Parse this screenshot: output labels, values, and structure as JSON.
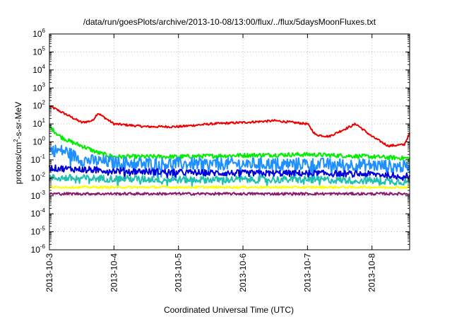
{
  "chart_data": {
    "type": "line",
    "title": "/data/run/goesPlots/archive/2013-10-08/13:00/flux/../flux/5daysMoonFluxes.txt",
    "xlabel": "Coordinated Universal Time (UTC)",
    "ylabel": {
      "prefix": "protons/cm",
      "sup": "2",
      "suffix": "-s-sr-MeV"
    },
    "yscale": "log",
    "ylim": [
      1e-06,
      1000000.0
    ],
    "yticks": [
      {
        "base": "10",
        "exp": "-6",
        "value": -6
      },
      {
        "base": "10",
        "exp": "-5",
        "value": -5
      },
      {
        "base": "10",
        "exp": "-4",
        "value": -4
      },
      {
        "base": "10",
        "exp": "-3",
        "value": -3
      },
      {
        "base": "10",
        "exp": "-2",
        "value": -2
      },
      {
        "base": "10",
        "exp": "-1",
        "value": -1
      },
      {
        "base": "10",
        "exp": "0",
        "value": 0
      },
      {
        "base": "10",
        "exp": "1",
        "value": 1
      },
      {
        "base": "10",
        "exp": "2",
        "value": 2
      },
      {
        "base": "10",
        "exp": "3",
        "value": 3
      },
      {
        "base": "10",
        "exp": "4",
        "value": 4
      },
      {
        "base": "10",
        "exp": "5",
        "value": 5
      },
      {
        "base": "10",
        "exp": "6",
        "value": 6
      }
    ],
    "xlim": [
      "2013-10-03T00:00",
      "2013-10-08T14:00"
    ],
    "xticks": [
      "2013-10-3",
      "2013-10-4",
      "2013-10-5",
      "2013-10-6",
      "2013-10-7",
      "2013-10-8"
    ],
    "grid": true,
    "series": [
      {
        "color": "#ee0000",
        "noise": 0.06,
        "x": [
          "2013-10-03T00:00",
          "2013-10-03T06:00",
          "2013-10-03T12:00",
          "2013-10-03T16:00",
          "2013-10-03T18:00",
          "2013-10-04T00:00",
          "2013-10-04T12:00",
          "2013-10-05T00:00",
          "2013-10-05T12:00",
          "2013-10-06T00:00",
          "2013-10-06T12:00",
          "2013-10-07T00:00",
          "2013-10-07T03:00",
          "2013-10-07T08:00",
          "2013-10-07T18:00",
          "2013-10-08T00:00",
          "2013-10-08T06:00",
          "2013-10-08T12:00",
          "2013-10-08T14:00"
        ],
        "y": [
          100,
          35,
          12,
          15,
          40,
          10,
          7,
          7,
          10,
          12,
          15,
          10,
          2.5,
          2,
          10,
          2,
          0.6,
          0.7,
          3
        ]
      },
      {
        "color": "#00ee00",
        "noise": 0.12,
        "x": [
          "2013-10-03T00:00",
          "2013-10-03T04:00",
          "2013-10-03T08:00",
          "2013-10-03T12:00",
          "2013-10-03T18:00",
          "2013-10-04T00:00",
          "2013-10-05T00:00",
          "2013-10-06T00:00",
          "2013-10-07T00:00",
          "2013-10-08T00:00",
          "2013-10-08T14:00"
        ],
        "y": [
          7,
          2,
          1,
          0.6,
          0.25,
          0.15,
          0.15,
          0.18,
          0.2,
          0.15,
          0.12
        ]
      },
      {
        "color": "#1e90ff",
        "noise": 0.35,
        "x": [
          "2013-10-03T00:00",
          "2013-10-03T06:00",
          "2013-10-03T12:00",
          "2013-10-04T00:00",
          "2013-10-05T00:00",
          "2013-10-06T00:00",
          "2013-10-07T00:00",
          "2013-10-08T00:00",
          "2013-10-08T14:00"
        ],
        "y": [
          0.35,
          0.3,
          0.1,
          0.07,
          0.06,
          0.06,
          0.06,
          0.05,
          0.04
        ]
      },
      {
        "color": "#0000dd",
        "noise": 0.18,
        "x": [
          "2013-10-03T00:00",
          "2013-10-04T00:00",
          "2013-10-05T00:00",
          "2013-10-06T00:00",
          "2013-10-07T00:00",
          "2013-10-08T00:00",
          "2013-10-08T14:00"
        ],
        "y": [
          0.035,
          0.025,
          0.02,
          0.018,
          0.018,
          0.016,
          0.012
        ]
      },
      {
        "color": "#20c0b0",
        "noise": 0.2,
        "x": [
          "2013-10-03T00:00",
          "2013-10-04T00:00",
          "2013-10-05T00:00",
          "2013-10-06T00:00",
          "2013-10-07T00:00",
          "2013-10-08T00:00",
          "2013-10-08T14:00"
        ],
        "y": [
          0.01,
          0.009,
          0.008,
          0.008,
          0.008,
          0.007,
          0.006
        ]
      },
      {
        "color": "#ffff00",
        "noise": 0.06,
        "x": [
          "2013-10-03T00:00",
          "2013-10-08T14:00"
        ],
        "y": [
          0.003,
          0.003
        ]
      },
      {
        "color": "#8b1a6b",
        "noise": 0.07,
        "x": [
          "2013-10-03T00:00",
          "2013-10-08T14:00"
        ],
        "y": [
          0.0013,
          0.0013
        ]
      }
    ]
  }
}
